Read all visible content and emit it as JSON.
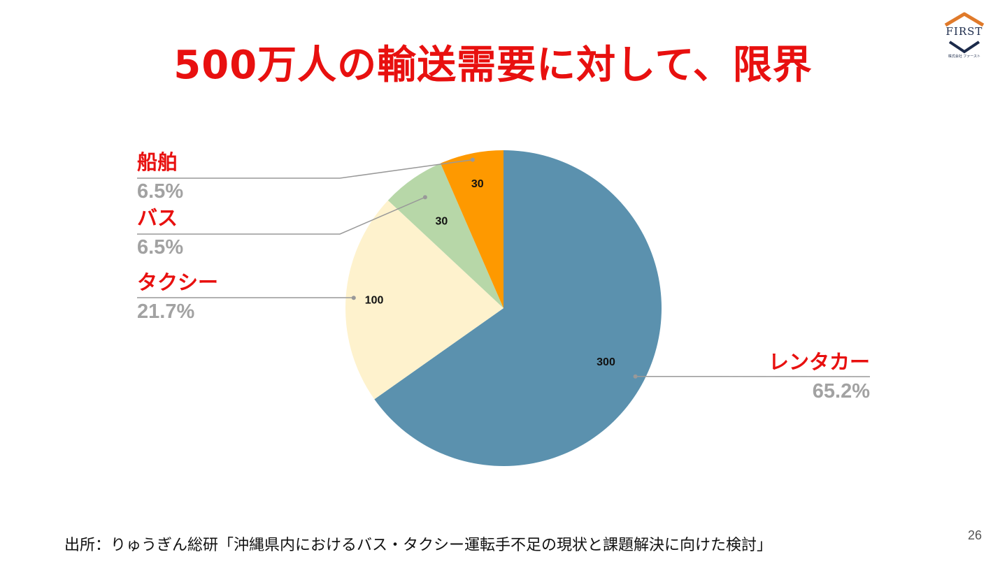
{
  "slide": {
    "title": "500万人の輸送需要に対して、限界",
    "source": "出所：りゅうぎん総研「沖縄県内におけるバス・タクシー運転手不足の現状と課題解決に向けた検討」",
    "page_number": "26",
    "logo_text": "FIRST",
    "logo_subtext": "株式会社 ファースト"
  },
  "chart_data": {
    "type": "pie",
    "title": "",
    "slices": [
      {
        "name": "レンタカー",
        "value": 300,
        "value_label": "300",
        "percent_label": "65.2%",
        "color": "#5b91ae"
      },
      {
        "name": "タクシー",
        "value": 100,
        "value_label": "100",
        "percent_label": "21.7%",
        "color": "#fef2cd"
      },
      {
        "name": "バス",
        "value": 30,
        "value_label": "30",
        "percent_label": "6.5%",
        "color": "#b7d7a8"
      },
      {
        "name": "船舶",
        "value": 30,
        "value_label": "30",
        "percent_label": "6.5%",
        "color": "#fe9900"
      }
    ],
    "start": "12 o'clock",
    "direction": "clockwise",
    "label_color": "#e8100f",
    "percent_color": "#a2a2a2",
    "leader_line_color": "#999999"
  }
}
